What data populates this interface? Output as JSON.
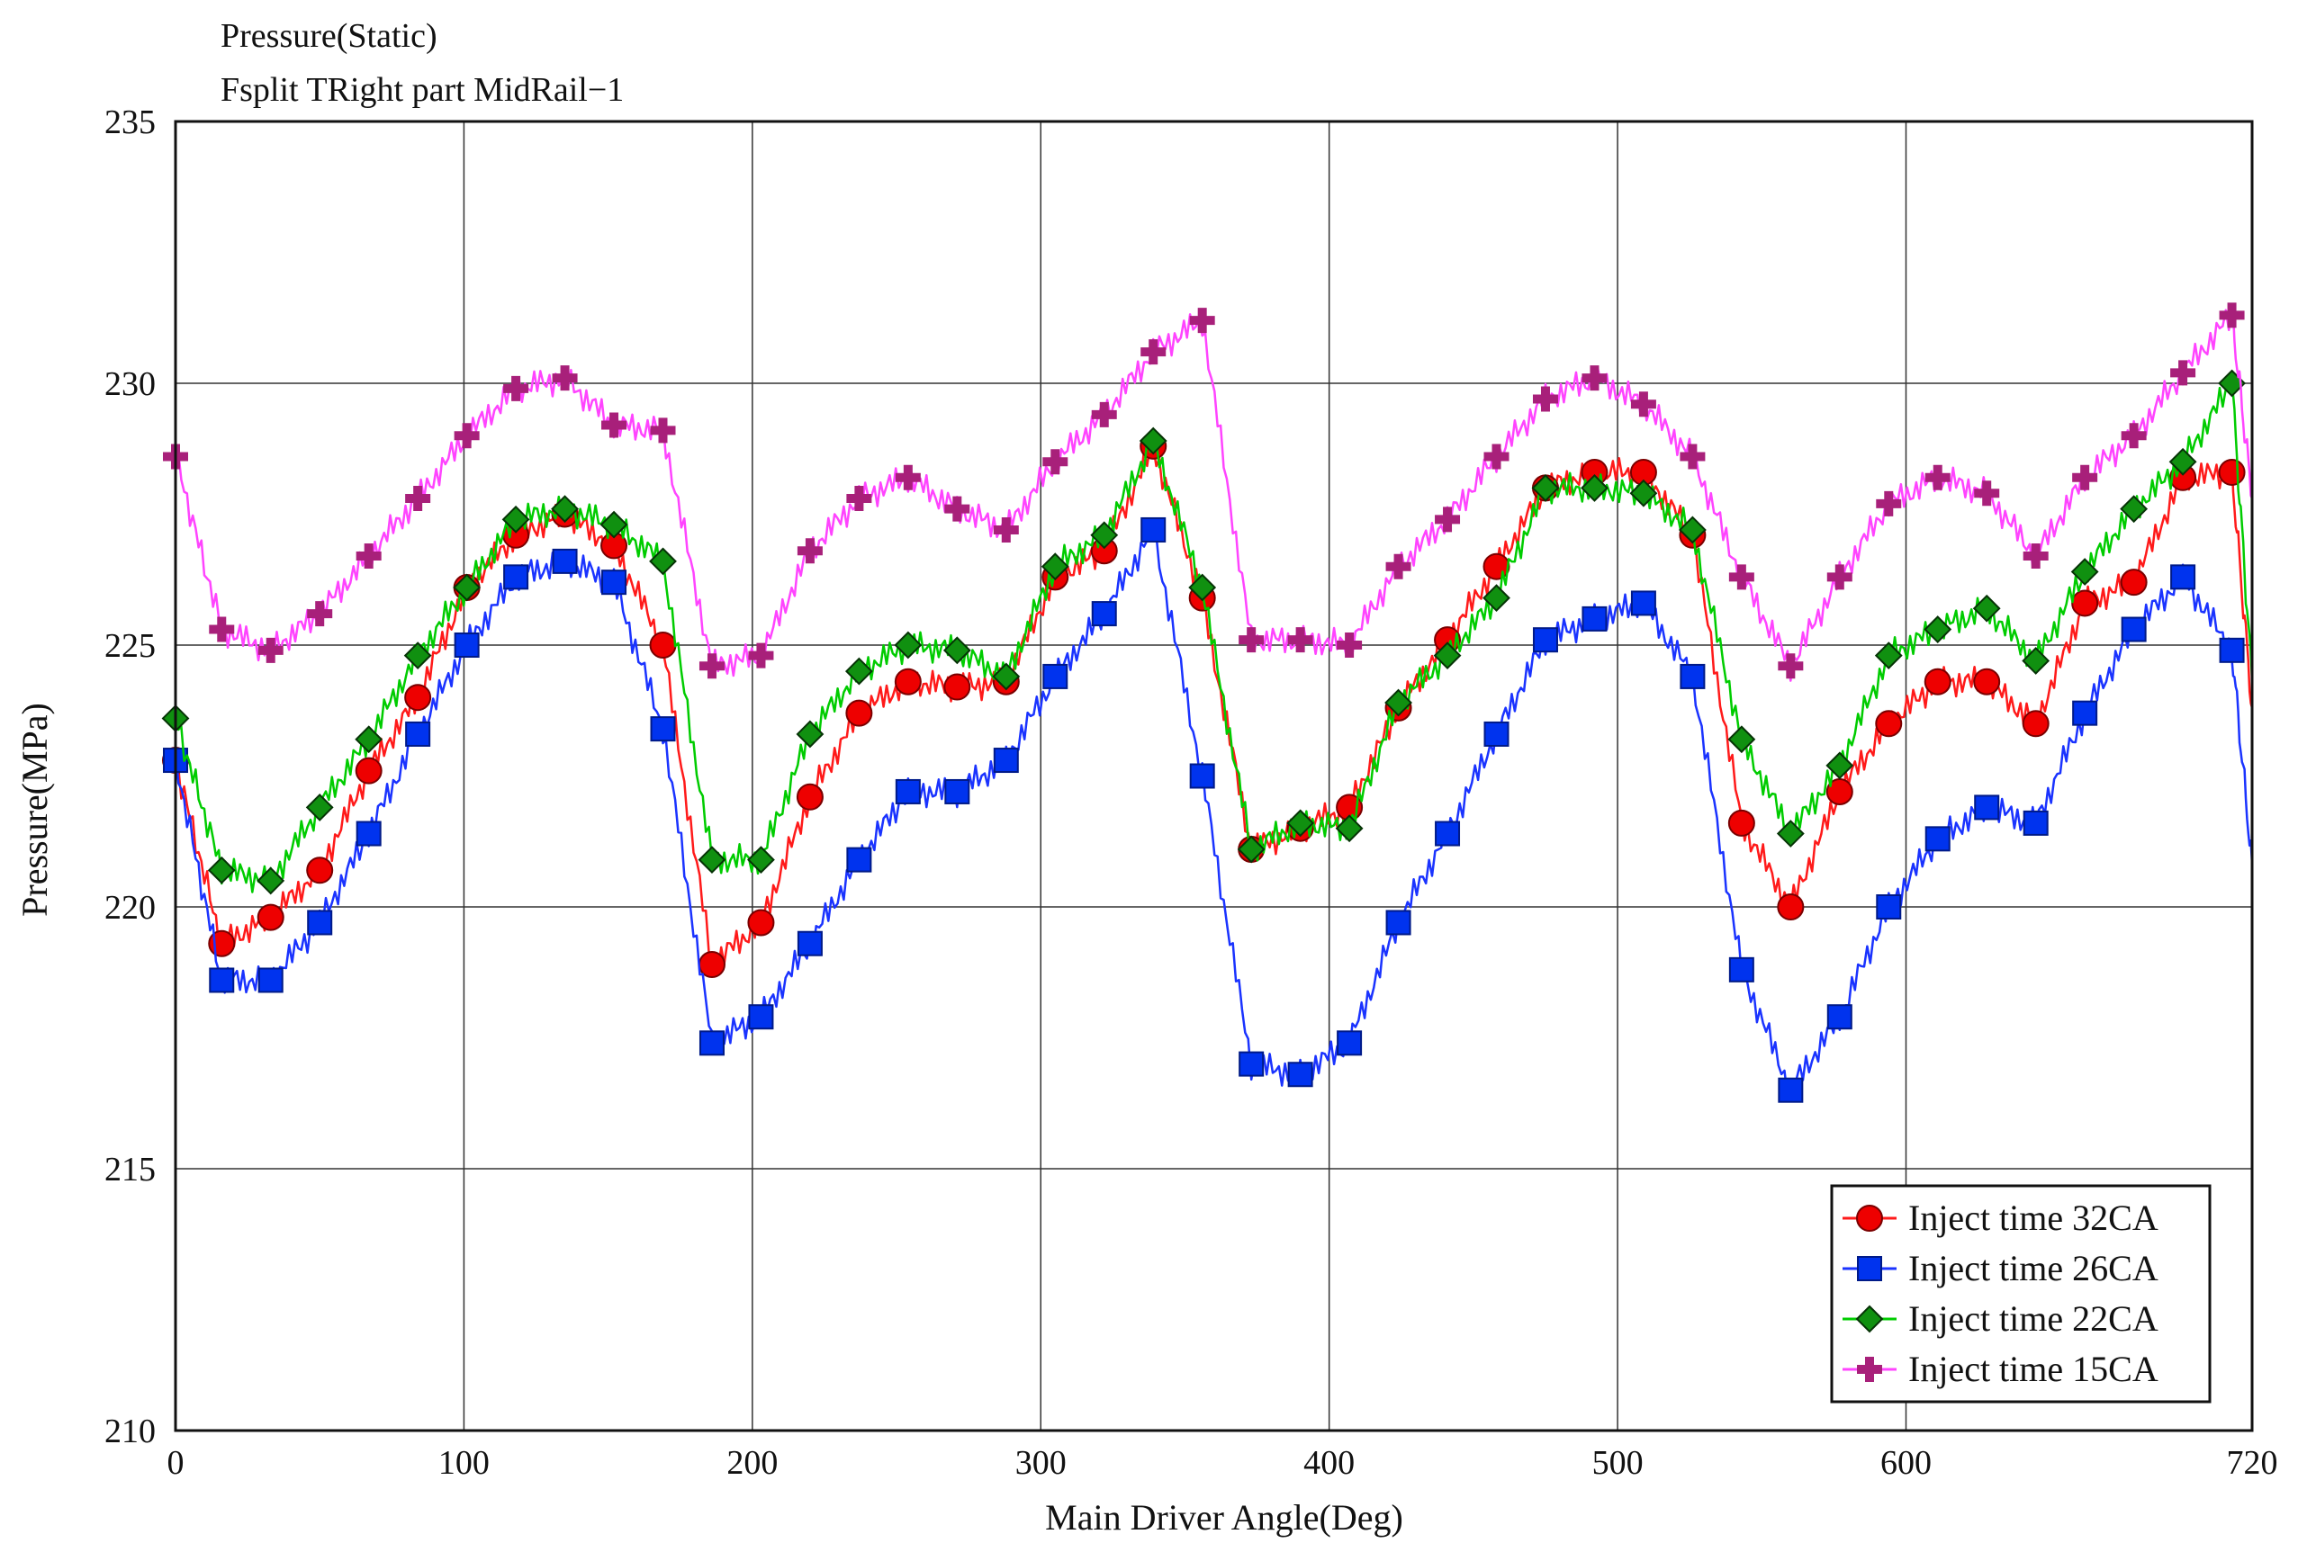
{
  "chart_data": {
    "type": "line",
    "title": "Pressure(Static)",
    "subtitle": "Fsplit TRight part MidRail−1",
    "xlabel": "Main Driver Angle(Deg)",
    "ylabel": "Pressure(MPa)",
    "xlim": [
      0,
      720
    ],
    "ylim": [
      210,
      235
    ],
    "xticks": [
      0,
      100,
      200,
      300,
      400,
      500,
      600,
      720
    ],
    "yticks": [
      210,
      215,
      220,
      225,
      230,
      235
    ],
    "grid": true,
    "legend_position": "bottom-right",
    "series": [
      {
        "name": "Inject time 32CA",
        "color": "#ff1a1a",
        "marker": "circle",
        "marker_fill": "#ee0000",
        "x": [
          0,
          16,
          33,
          50,
          67,
          84,
          101,
          118,
          135,
          152,
          169,
          186,
          203,
          220,
          237,
          254,
          271,
          288,
          305,
          322,
          339,
          356,
          373,
          390,
          407,
          424,
          441,
          458,
          475,
          492,
          509,
          526,
          543,
          560,
          577,
          594,
          611,
          628,
          645,
          662,
          679,
          696,
          713,
          720
        ],
        "values": [
          222.8,
          219.3,
          219.8,
          220.7,
          222.6,
          224.0,
          226.1,
          227.1,
          227.5,
          226.9,
          225.0,
          218.9,
          219.7,
          222.1,
          223.7,
          224.3,
          224.2,
          224.3,
          226.3,
          226.8,
          228.8,
          225.9,
          221.1,
          221.5,
          221.9,
          223.8,
          225.1,
          226.5,
          228.0,
          228.3,
          228.3,
          227.1,
          221.6,
          220.0,
          222.2,
          223.5,
          224.3,
          224.3,
          223.5,
          225.8,
          226.2,
          228.2,
          228.3,
          223.8
        ]
      },
      {
        "name": "Inject time 26CA",
        "color": "#1a33ff",
        "marker": "square",
        "marker_fill": "#0033ee",
        "x": [
          0,
          16,
          33,
          50,
          67,
          84,
          101,
          118,
          135,
          152,
          169,
          186,
          203,
          220,
          237,
          254,
          271,
          288,
          305,
          322,
          339,
          356,
          373,
          390,
          407,
          424,
          441,
          458,
          475,
          492,
          509,
          526,
          543,
          560,
          577,
          594,
          611,
          628,
          645,
          662,
          679,
          696,
          713,
          720
        ],
        "values": [
          222.8,
          218.6,
          218.6,
          219.7,
          221.4,
          223.3,
          225.0,
          226.3,
          226.6,
          226.2,
          223.4,
          217.4,
          217.9,
          219.3,
          220.9,
          222.2,
          222.2,
          222.8,
          224.4,
          225.6,
          227.2,
          222.5,
          217.0,
          216.8,
          217.4,
          219.7,
          221.4,
          223.3,
          225.1,
          225.5,
          225.8,
          224.4,
          218.8,
          216.5,
          217.9,
          220.0,
          221.3,
          221.9,
          221.6,
          223.7,
          225.3,
          226.3,
          224.9,
          220.8
        ]
      },
      {
        "name": "Inject time 22CA",
        "color": "#00cc00",
        "marker": "diamond",
        "marker_fill": "#109010",
        "x": [
          0,
          16,
          33,
          50,
          67,
          84,
          101,
          118,
          135,
          152,
          169,
          186,
          203,
          220,
          237,
          254,
          271,
          288,
          305,
          322,
          339,
          356,
          373,
          390,
          407,
          424,
          441,
          458,
          475,
          492,
          509,
          526,
          543,
          560,
          577,
          594,
          611,
          628,
          645,
          662,
          679,
          696,
          713,
          720
        ],
        "values": [
          223.6,
          220.7,
          220.5,
          221.9,
          223.2,
          224.8,
          226.1,
          227.4,
          227.6,
          227.3,
          226.6,
          220.9,
          220.9,
          223.3,
          224.5,
          225.0,
          224.9,
          224.4,
          226.5,
          227.1,
          228.9,
          226.1,
          221.1,
          221.6,
          221.5,
          223.9,
          224.8,
          225.9,
          228.0,
          228.0,
          227.9,
          227.2,
          223.2,
          221.4,
          222.7,
          224.8,
          225.3,
          225.7,
          224.7,
          226.4,
          227.6,
          228.5,
          230.0,
          224.3
        ]
      },
      {
        "name": "Inject time 15CA",
        "color": "#ff44ff",
        "marker": "plus",
        "marker_fill": "#a8207a",
        "x": [
          0,
          16,
          33,
          50,
          67,
          84,
          101,
          118,
          135,
          152,
          169,
          186,
          203,
          220,
          237,
          254,
          271,
          288,
          305,
          322,
          339,
          356,
          373,
          390,
          407,
          424,
          441,
          458,
          475,
          492,
          509,
          526,
          543,
          560,
          577,
          594,
          611,
          628,
          645,
          662,
          679,
          696,
          713,
          720
        ],
        "values": [
          228.6,
          225.3,
          224.9,
          225.6,
          226.7,
          227.8,
          229.0,
          229.9,
          230.1,
          229.2,
          229.1,
          224.6,
          224.8,
          226.8,
          227.8,
          228.2,
          227.6,
          227.2,
          228.5,
          229.4,
          230.6,
          231.2,
          225.1,
          225.1,
          225.0,
          226.5,
          227.4,
          228.6,
          229.7,
          230.1,
          229.6,
          228.6,
          226.3,
          224.6,
          226.3,
          227.7,
          228.2,
          227.9,
          226.7,
          228.2,
          229.0,
          230.2,
          231.3,
          227.8
        ]
      }
    ]
  }
}
